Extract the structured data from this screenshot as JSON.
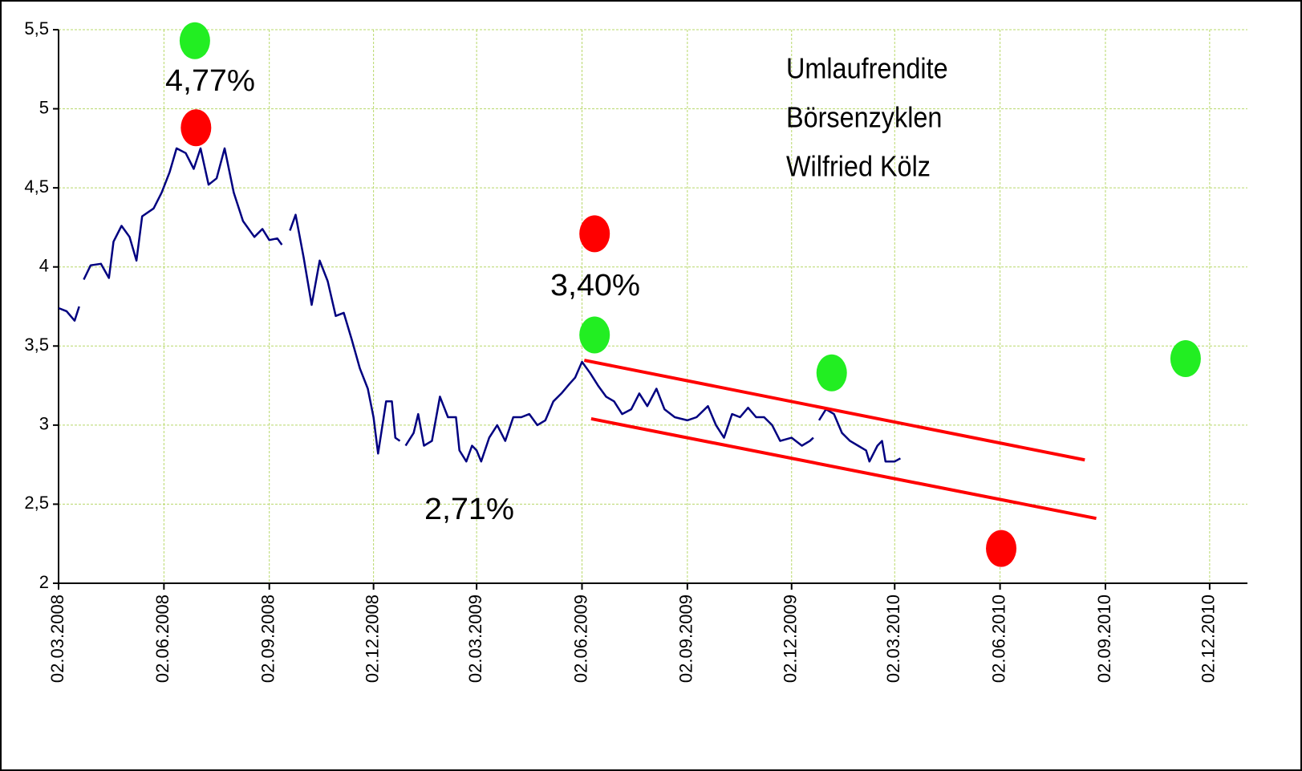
{
  "chart_data": {
    "type": "line",
    "note_lines": [
      "Umlaufrendite",
      "Börsenzyklen",
      "Wilfried Kölz"
    ],
    "annotations": [
      "4,77%",
      "3,40%",
      "2,71%"
    ],
    "x": [
      "02.03.2008",
      "09.03.2008",
      "16.03.2008",
      "20.03.2008",
      "22.03.2008",
      "24.03.2008",
      "30.03.2008",
      "08.04.2008",
      "15.04.2008",
      "19.04.2008",
      "26.04.2008",
      "03.05.2008",
      "09.05.2008",
      "14.05.2008",
      "24.05.2008",
      "31.05.2008",
      "07.06.2008",
      "13.06.2008",
      "21.06.2008",
      "28.06.2008",
      "04.07.2008",
      "11.07.2008",
      "18.07.2008",
      "25.07.2008",
      "02.08.2008",
      "10.08.2008",
      "20.08.2008",
      "27.08.2008",
      "02.09.2008",
      "09.09.2008",
      "13.09.2008",
      "16.09.2008",
      "20.09.2008",
      "25.09.2008",
      "02.10.2008",
      "09.10.2008",
      "16.10.2008",
      "23.10.2008",
      "30.10.2008",
      "06.11.2008",
      "13.11.2008",
      "20.11.2008",
      "27.11.2008",
      "02.12.2008",
      "06.12.2008",
      "13.12.2008",
      "18.12.2008",
      "21.12.2008",
      "25.12.2008",
      "27.12.2008",
      "30.12.2008",
      "06.01.2009",
      "10.01.2009",
      "15.01.2009",
      "22.01.2009",
      "29.01.2009",
      "05.02.2009",
      "12.02.2009",
      "15.02.2009",
      "21.02.2009",
      "26.02.2009",
      "02.03.2009",
      "06.03.2009",
      "13.03.2009",
      "20.03.2009",
      "27.03.2009",
      "03.04.2009",
      "10.04.2009",
      "17.04.2009",
      "24.04.2009",
      "01.05.2009",
      "08.05.2009",
      "15.05.2009",
      "22.05.2009",
      "27.05.2009",
      "02.06.2009",
      "09.06.2009",
      "16.06.2009",
      "23.06.2009",
      "30.06.2009",
      "07.07.2009",
      "15.07.2009",
      "22.07.2009",
      "29.07.2009",
      "06.08.2009",
      "13.08.2009",
      "22.08.2009",
      "02.09.2009",
      "10.09.2009",
      "20.09.2009",
      "27.09.2009",
      "04.10.2009",
      "11.10.2009",
      "18.10.2009",
      "25.10.2009",
      "01.11.2009",
      "08.11.2009",
      "15.11.2009",
      "22.11.2009",
      "02.12.2009",
      "11.12.2009",
      "18.12.2009",
      "21.12.2009",
      "23.12.2009",
      "26.12.2009",
      "01.01.2010",
      "08.01.2010",
      "15.01.2010",
      "22.01.2010",
      "29.01.2010",
      "05.02.2010",
      "08.02.2010",
      "15.02.2010",
      "19.02.2010",
      "22.02.2010",
      "02.03.2010",
      "07.03.2010"
    ],
    "series": [
      {
        "color": "#000080",
        "values": [
          3.74,
          3.72,
          3.66,
          3.75,
          null,
          3.92,
          4.01,
          4.02,
          3.93,
          4.16,
          4.26,
          4.19,
          4.04,
          4.32,
          4.37,
          4.47,
          4.6,
          4.75,
          4.72,
          4.62,
          4.75,
          4.52,
          4.56,
          4.75,
          4.47,
          4.29,
          4.19,
          4.24,
          4.17,
          4.18,
          4.14,
          null,
          4.23,
          4.33,
          4.06,
          3.76,
          4.04,
          3.91,
          3.69,
          3.71,
          3.54,
          3.36,
          3.23,
          3.05,
          2.82,
          3.15,
          3.15,
          2.92,
          2.9,
          null,
          2.87,
          2.95,
          3.07,
          2.87,
          2.9,
          3.18,
          3.05,
          3.05,
          2.84,
          2.77,
          2.87,
          2.84,
          2.77,
          2.92,
          3.0,
          2.9,
          3.05,
          3.05,
          3.07,
          3.0,
          3.03,
          3.15,
          3.2,
          3.26,
          3.3,
          3.4,
          3.33,
          3.25,
          3.18,
          3.15,
          3.07,
          3.1,
          3.2,
          3.12,
          3.23,
          3.1,
          3.05,
          3.03,
          3.05,
          3.12,
          3.0,
          2.92,
          3.07,
          3.05,
          3.11,
          3.05,
          3.05,
          3.0,
          2.9,
          2.92,
          2.87,
          2.9,
          2.92,
          null,
          3.03,
          3.1,
          3.07,
          2.95,
          2.9,
          2.87,
          2.84,
          2.77,
          2.87,
          2.9,
          2.77,
          2.77,
          2.79
        ]
      }
    ],
    "markers": [
      {
        "color": "#22ee22",
        "x": "29.06.2008",
        "y": 5.43
      },
      {
        "color": "#ff0000",
        "x": "30.06.2008",
        "y": 4.88
      },
      {
        "color": "#ff0000",
        "x": "13.06.2009",
        "y": 4.21
      },
      {
        "color": "#22ee22",
        "x": "13.06.2009",
        "y": 3.57
      },
      {
        "color": "#22ee22",
        "x": "06.01.2010",
        "y": 3.33
      },
      {
        "color": "#ff0000",
        "x": "03.06.2010",
        "y": 2.22
      },
      {
        "color": "#22ee22",
        "x": "11.11.2010",
        "y": 3.42
      }
    ],
    "trend_lines": [
      {
        "color": "#ff0000",
        "x": [
          "04.06.2009",
          "15.08.2010"
        ],
        "y": [
          3.41,
          2.78
        ]
      },
      {
        "color": "#ff0000",
        "x": [
          "10.06.2009",
          "25.08.2010"
        ],
        "y": [
          3.04,
          2.41
        ]
      }
    ],
    "xlim": [
      "02.03.2008",
      "04.01.2011"
    ],
    "xticks": [
      "02.03.2008",
      "02.06.2008",
      "02.09.2008",
      "02.12.2008",
      "02.03.2009",
      "02.06.2009",
      "02.09.2009",
      "02.12.2009",
      "02.03.2010",
      "02.06.2010",
      "02.09.2010",
      "02.12.2010"
    ],
    "ylim": [
      2,
      5.5
    ],
    "yticks": [
      2,
      {
        "value": 2.5,
        "label": "2,5"
      },
      3,
      {
        "value": 3.5,
        "label": "3,5"
      },
      4,
      {
        "value": 4.5,
        "label": "4,5"
      },
      5,
      {
        "value": 5.5,
        "label": "5,5"
      }
    ],
    "grid": true,
    "grid_color": "#b8d86a"
  }
}
